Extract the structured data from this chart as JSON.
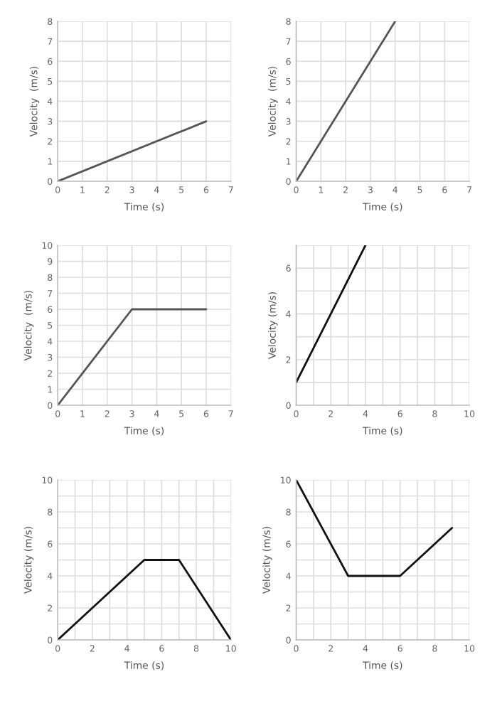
{
  "chart_data": [
    {
      "type": "line",
      "xlabel": "Time (s)",
      "ylabel": "Velocity  (m/s)",
      "x": [
        0,
        6
      ],
      "values": [
        0,
        3
      ],
      "color": "#555555",
      "xlim": [
        0,
        7
      ],
      "ylim": [
        0,
        8
      ],
      "xticks": [
        0,
        1,
        2,
        3,
        4,
        5,
        6,
        7
      ],
      "yticks": [
        0,
        1,
        2,
        3,
        4,
        5,
        6,
        7,
        8
      ],
      "grid": true
    },
    {
      "type": "line",
      "xlabel": "Time (s)",
      "ylabel": "Velocity  (m/s)",
      "x": [
        0,
        4
      ],
      "values": [
        0,
        8
      ],
      "color": "#555555",
      "xlim": [
        0,
        7
      ],
      "ylim": [
        0,
        8
      ],
      "xticks": [
        0,
        1,
        2,
        3,
        4,
        5,
        6,
        7
      ],
      "yticks": [
        0,
        1,
        2,
        3,
        4,
        5,
        6,
        7,
        8
      ],
      "grid": true
    },
    {
      "type": "line",
      "xlabel": "Time (s)",
      "ylabel": "Velocity  (m/s)",
      "x": [
        0,
        3,
        6
      ],
      "values": [
        0,
        6,
        6
      ],
      "color": "#555555",
      "xlim": [
        0,
        7
      ],
      "ylim": [
        0,
        10
      ],
      "xticks": [
        0,
        1,
        2,
        3,
        4,
        5,
        6,
        7
      ],
      "yticks": [
        0,
        1,
        2,
        3,
        4,
        5,
        6,
        7,
        8,
        9,
        10
      ],
      "grid": true
    },
    {
      "type": "line",
      "xlabel": "Time (s)",
      "ylabel": "Velocity (m/s)",
      "x": [
        0,
        4
      ],
      "values": [
        1,
        7
      ],
      "color": "#111111",
      "xlim": [
        0,
        10
      ],
      "ylim": [
        0,
        7
      ],
      "xticks": [
        0,
        {
          "value": 1,
          "label": null
        },
        2,
        {
          "value": 3,
          "label": null
        },
        4,
        {
          "value": 5,
          "label": null
        },
        6,
        {
          "value": 7,
          "label": null
        },
        8,
        {
          "value": 9,
          "label": null
        },
        10
      ],
      "yticks": [
        0,
        {
          "value": 1,
          "label": null
        },
        2,
        {
          "value": 3,
          "label": null
        },
        4,
        {
          "value": 5,
          "label": null
        },
        6,
        {
          "value": 7,
          "label": null
        }
      ],
      "grid": true
    },
    {
      "type": "line",
      "xlabel": "Time (s)",
      "ylabel": "Velocity (m/s)",
      "x": [
        0,
        5,
        7,
        10
      ],
      "values": [
        0,
        5,
        5,
        0
      ],
      "color": "#111111",
      "xlim": [
        0,
        10
      ],
      "ylim": [
        0,
        10
      ],
      "xticks": [
        0,
        {
          "value": 1,
          "label": null
        },
        2,
        {
          "value": 3,
          "label": null
        },
        4,
        {
          "value": 5,
          "label": null
        },
        6,
        {
          "value": 7,
          "label": null
        },
        8,
        {
          "value": 9,
          "label": null
        },
        10
      ],
      "yticks": [
        0,
        {
          "value": 1,
          "label": null
        },
        2,
        {
          "value": 3,
          "label": null
        },
        4,
        {
          "value": 5,
          "label": null
        },
        6,
        {
          "value": 7,
          "label": null
        },
        8,
        {
          "value": 9,
          "label": null
        },
        10
      ],
      "grid": true
    },
    {
      "type": "line",
      "xlabel": "Time (s)",
      "ylabel": "Velocity (m/s)",
      "x": [
        0,
        3,
        6,
        9
      ],
      "values": [
        10,
        4,
        4,
        7
      ],
      "color": "#111111",
      "xlim": [
        0,
        10
      ],
      "ylim": [
        0,
        10
      ],
      "xticks": [
        0,
        {
          "value": 1,
          "label": null
        },
        2,
        {
          "value": 3,
          "label": null
        },
        4,
        {
          "value": 5,
          "label": null
        },
        6,
        {
          "value": 7,
          "label": null
        },
        8,
        {
          "value": 9,
          "label": null
        },
        10
      ],
      "yticks": [
        0,
        {
          "value": 1,
          "label": null
        },
        2,
        {
          "value": 3,
          "label": null
        },
        4,
        {
          "value": 5,
          "label": null
        },
        6,
        {
          "value": 7,
          "label": null
        },
        8,
        {
          "value": 9,
          "label": null
        },
        10
      ],
      "grid": true
    }
  ]
}
